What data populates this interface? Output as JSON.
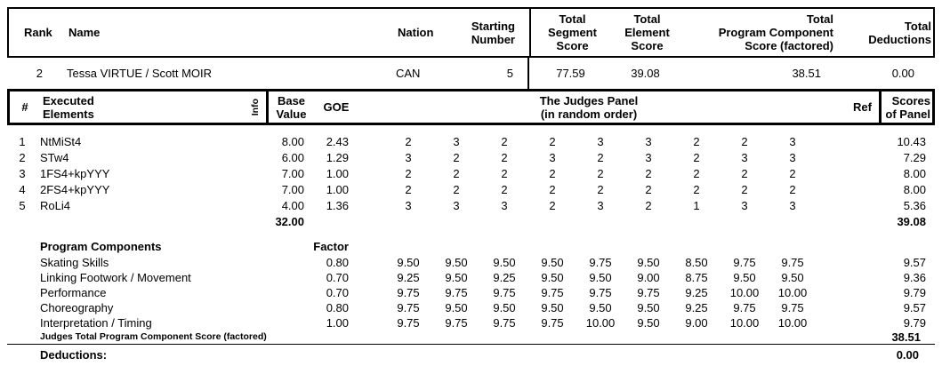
{
  "colors": {
    "text": "#000000",
    "background": "#ffffff",
    "border": "#000000"
  },
  "score_header": {
    "rank_label": "Rank",
    "name_label": "Name",
    "nation_label": "Nation",
    "starting_lines": [
      "Starting",
      "Number"
    ],
    "segment_lines": [
      "Total",
      "Segment",
      "Score"
    ],
    "element_lines": [
      "Total",
      "Element",
      "Score"
    ],
    "pcs_lines": [
      "Total",
      "Program Component",
      "Score (factored)"
    ],
    "deductions_lines": [
      "Total",
      "Deductions"
    ]
  },
  "skater": {
    "rank": "2",
    "name": "Tessa VIRTUE / Scott MOIR",
    "nation": "CAN",
    "starting_number": "5",
    "total_segment_score": "77.59",
    "total_element_score": "39.08",
    "total_pcs_factored": "38.51",
    "total_deductions": "0.00"
  },
  "elements_header": {
    "num_label": "#",
    "executed_lines": [
      "Executed",
      "Elements"
    ],
    "info_label": "Info",
    "base_lines": [
      "Base",
      "Value"
    ],
    "goe_label": "GOE",
    "judges_lines": [
      "The Judges Panel",
      "(in random order)"
    ],
    "ref_label": "Ref",
    "scores_lines": [
      "Scores",
      "of Panel"
    ]
  },
  "elements": {
    "rows": [
      {
        "num": "1",
        "name": "NtMiSt4",
        "base": "8.00",
        "goe": "2.43",
        "judges": [
          "2",
          "3",
          "2",
          "2",
          "3",
          "3",
          "2",
          "2",
          "3"
        ],
        "panel": "10.43"
      },
      {
        "num": "2",
        "name": "STw4",
        "base": "6.00",
        "goe": "1.29",
        "judges": [
          "3",
          "2",
          "2",
          "3",
          "2",
          "3",
          "2",
          "3",
          "3"
        ],
        "panel": "7.29"
      },
      {
        "num": "3",
        "name": "1FS4+kpYYY",
        "base": "7.00",
        "goe": "1.00",
        "judges": [
          "2",
          "2",
          "2",
          "2",
          "2",
          "2",
          "2",
          "2",
          "2"
        ],
        "panel": "8.00"
      },
      {
        "num": "4",
        "name": "2FS4+kpYYY",
        "base": "7.00",
        "goe": "1.00",
        "judges": [
          "2",
          "2",
          "2",
          "2",
          "2",
          "2",
          "2",
          "2",
          "2"
        ],
        "panel": "8.00"
      },
      {
        "num": "5",
        "name": "RoLi4",
        "base": "4.00",
        "goe": "1.36",
        "judges": [
          "3",
          "3",
          "3",
          "2",
          "3",
          "2",
          "1",
          "3",
          "3"
        ],
        "panel": "5.36"
      }
    ],
    "base_total": "32.00",
    "panel_total": "39.08"
  },
  "components": {
    "title": "Program Components",
    "factor_label": "Factor",
    "rows": [
      {
        "name": "Skating Skills",
        "factor": "0.80",
        "judges": [
          "9.50",
          "9.50",
          "9.50",
          "9.50",
          "9.75",
          "9.50",
          "8.50",
          "9.75",
          "9.75"
        ],
        "panel": "9.57"
      },
      {
        "name": "Linking Footwork / Movement",
        "factor": "0.70",
        "judges": [
          "9.25",
          "9.50",
          "9.25",
          "9.50",
          "9.50",
          "9.00",
          "8.75",
          "9.50",
          "9.50"
        ],
        "panel": "9.36"
      },
      {
        "name": "Performance",
        "factor": "0.70",
        "judges": [
          "9.75",
          "9.75",
          "9.75",
          "9.75",
          "9.75",
          "9.75",
          "9.25",
          "10.00",
          "10.00"
        ],
        "panel": "9.79"
      },
      {
        "name": "Choreography",
        "factor": "0.80",
        "judges": [
          "9.75",
          "9.50",
          "9.50",
          "9.50",
          "9.50",
          "9.50",
          "9.25",
          "9.75",
          "9.75"
        ],
        "panel": "9.57"
      },
      {
        "name": "Interpretation / Timing",
        "factor": "1.00",
        "judges": [
          "9.75",
          "9.75",
          "9.75",
          "9.75",
          "10.00",
          "9.50",
          "9.00",
          "10.00",
          "10.00"
        ],
        "panel": "9.79"
      }
    ],
    "total_label": "Judges Total Program Component Score (factored)",
    "total_value": "38.51"
  },
  "deductions": {
    "label": "Deductions:",
    "value": "0.00"
  }
}
